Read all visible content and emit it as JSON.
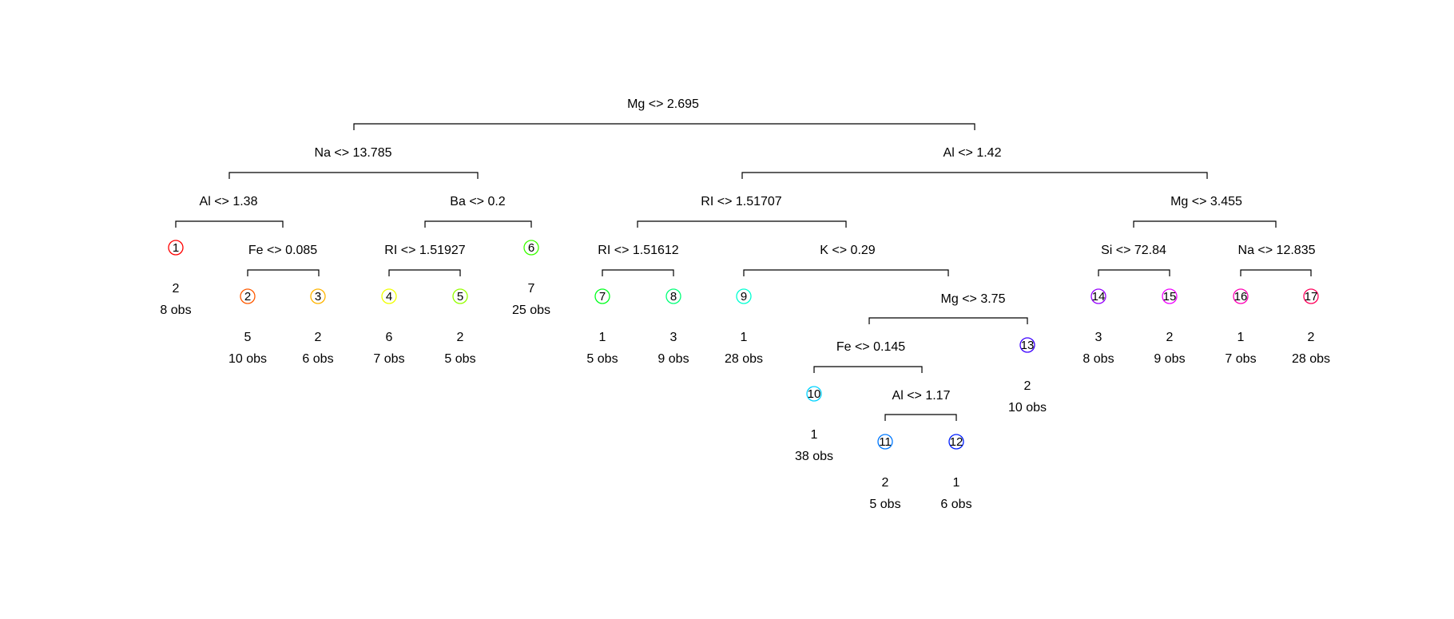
{
  "splits": [
    {
      "id": "root",
      "label": "Mg <> 2.695"
    },
    {
      "id": "L",
      "label": "Na <> 13.785"
    },
    {
      "id": "R",
      "label": "Al <> 1.42"
    },
    {
      "id": "LL",
      "label": "Al <> 1.38"
    },
    {
      "id": "LLR",
      "label": "Fe <> 0.085"
    },
    {
      "id": "LR",
      "label": "Ba <> 0.2"
    },
    {
      "id": "LRL",
      "label": "RI <> 1.51927"
    },
    {
      "id": "RL",
      "label": "RI <> 1.51707"
    },
    {
      "id": "RLL",
      "label": "RI <> 1.51612"
    },
    {
      "id": "RLR",
      "label": "K <> 0.29"
    },
    {
      "id": "RLRR",
      "label": "Mg <> 3.75"
    },
    {
      "id": "RLRRL",
      "label": "Fe <> 0.145"
    },
    {
      "id": "RLRRLR",
      "label": "Al <> 1.17"
    },
    {
      "id": "RR",
      "label": "Mg <> 3.455"
    },
    {
      "id": "RRL",
      "label": "Si <> 72.84"
    },
    {
      "id": "RRR",
      "label": "Na <> 12.835"
    }
  ],
  "leaves": [
    {
      "node": "1",
      "class": "2",
      "obs": "8 obs",
      "color": "#FF0000"
    },
    {
      "node": "2",
      "class": "5",
      "obs": "10 obs",
      "color": "#FF5A00"
    },
    {
      "node": "3",
      "class": "2",
      "obs": "6 obs",
      "color": "#FFB400"
    },
    {
      "node": "4",
      "class": "6",
      "obs": "7 obs",
      "color": "#F0FF00"
    },
    {
      "node": "5",
      "class": "2",
      "obs": "5 obs",
      "color": "#96FF00"
    },
    {
      "node": "6",
      "class": "7",
      "obs": "25 obs",
      "color": "#3CFF00"
    },
    {
      "node": "7",
      "class": "1",
      "obs": "5 obs",
      "color": "#00FF1E"
    },
    {
      "node": "8",
      "class": "3",
      "obs": "9 obs",
      "color": "#00FF78"
    },
    {
      "node": "9",
      "class": "1",
      "obs": "28 obs",
      "color": "#00FFD2"
    },
    {
      "node": "10",
      "class": "1",
      "obs": "38 obs",
      "color": "#00D2FF"
    },
    {
      "node": "11",
      "class": "2",
      "obs": "5 obs",
      "color": "#0078FF"
    },
    {
      "node": "12",
      "class": "1",
      "obs": "6 obs",
      "color": "#001EFF"
    },
    {
      "node": "13",
      "class": "2",
      "obs": "10 obs",
      "color": "#3C00FF"
    },
    {
      "node": "14",
      "class": "3",
      "obs": "8 obs",
      "color": "#9600FF"
    },
    {
      "node": "15",
      "class": "2",
      "obs": "9 obs",
      "color": "#F000FF"
    },
    {
      "node": "16",
      "class": "1",
      "obs": "7 obs",
      "color": "#FF00B4"
    },
    {
      "node": "17",
      "class": "2",
      "obs": "28 obs",
      "color": "#FF005A"
    }
  ]
}
